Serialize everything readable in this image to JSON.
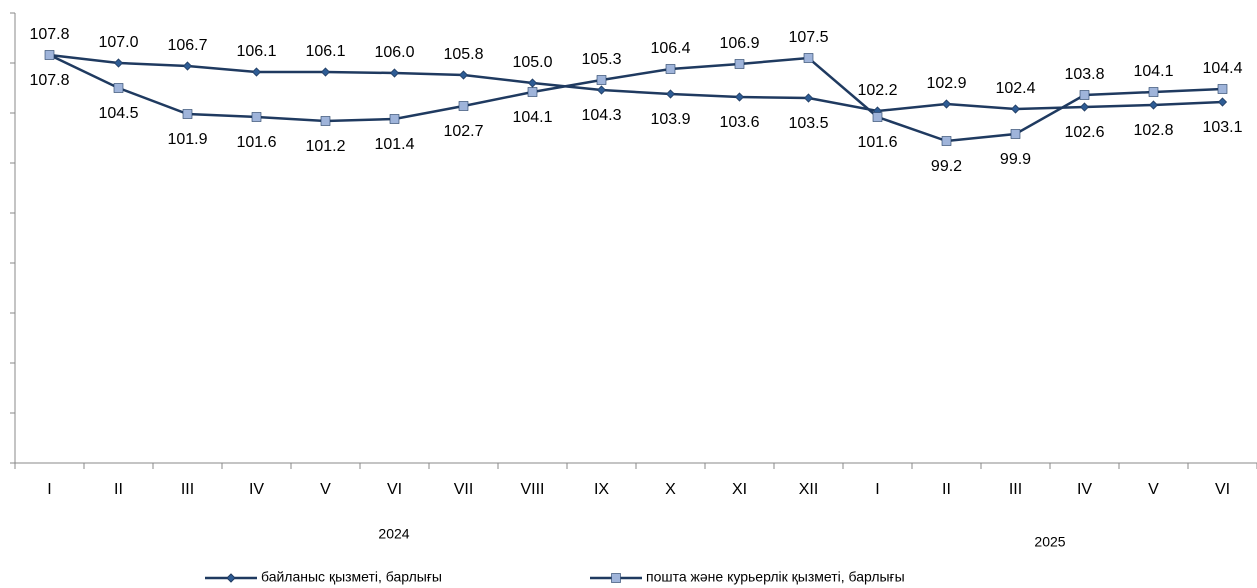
{
  "chart_data": {
    "type": "line",
    "categories": [
      "I",
      "II",
      "III",
      "IV",
      "V",
      "VI",
      "VII",
      "VIII",
      "IX",
      "X",
      "XI",
      "XII",
      "I",
      "II",
      "III",
      "IV",
      "V",
      "VI"
    ],
    "groups": [
      {
        "label": "2024",
        "start": 0,
        "end": 11
      },
      {
        "label": "2025",
        "start": 12,
        "end": 17
      }
    ],
    "series": [
      {
        "name": "байланыс қызметі, барлығы",
        "color": "#1f3a60",
        "marker": "diamond",
        "marker_color": "#2e5c94",
        "values": [
          107.8,
          107.0,
          106.7,
          106.1,
          106.1,
          106.0,
          105.8,
          105.0,
          104.3,
          103.9,
          103.6,
          103.5,
          102.2,
          102.9,
          102.4,
          102.6,
          102.8,
          103.1
        ],
        "value_labels": [
          "107.8",
          "107.0",
          "106.7",
          "106.1",
          "106.1",
          "106.0",
          "105.8",
          "105.0",
          "104.3",
          "103.9",
          "103.6",
          "103.5",
          "102.2",
          "102.9",
          "102.4",
          "102.6",
          "102.8",
          "103.1"
        ]
      },
      {
        "name": "пошта және курьерлік қызметі, барлығы",
        "color": "#1f3a60",
        "marker": "square",
        "marker_color": "#9fb4da",
        "values": [
          107.8,
          104.5,
          101.9,
          101.6,
          101.2,
          101.4,
          102.7,
          104.1,
          105.3,
          106.4,
          106.9,
          107.5,
          101.6,
          99.2,
          99.9,
          103.8,
          104.1,
          104.4
        ]
      }
    ],
    "ylim": [
      67,
      112
    ],
    "yticks": [
      67,
      72,
      77,
      82,
      87,
      92,
      97,
      102,
      107,
      112
    ]
  }
}
